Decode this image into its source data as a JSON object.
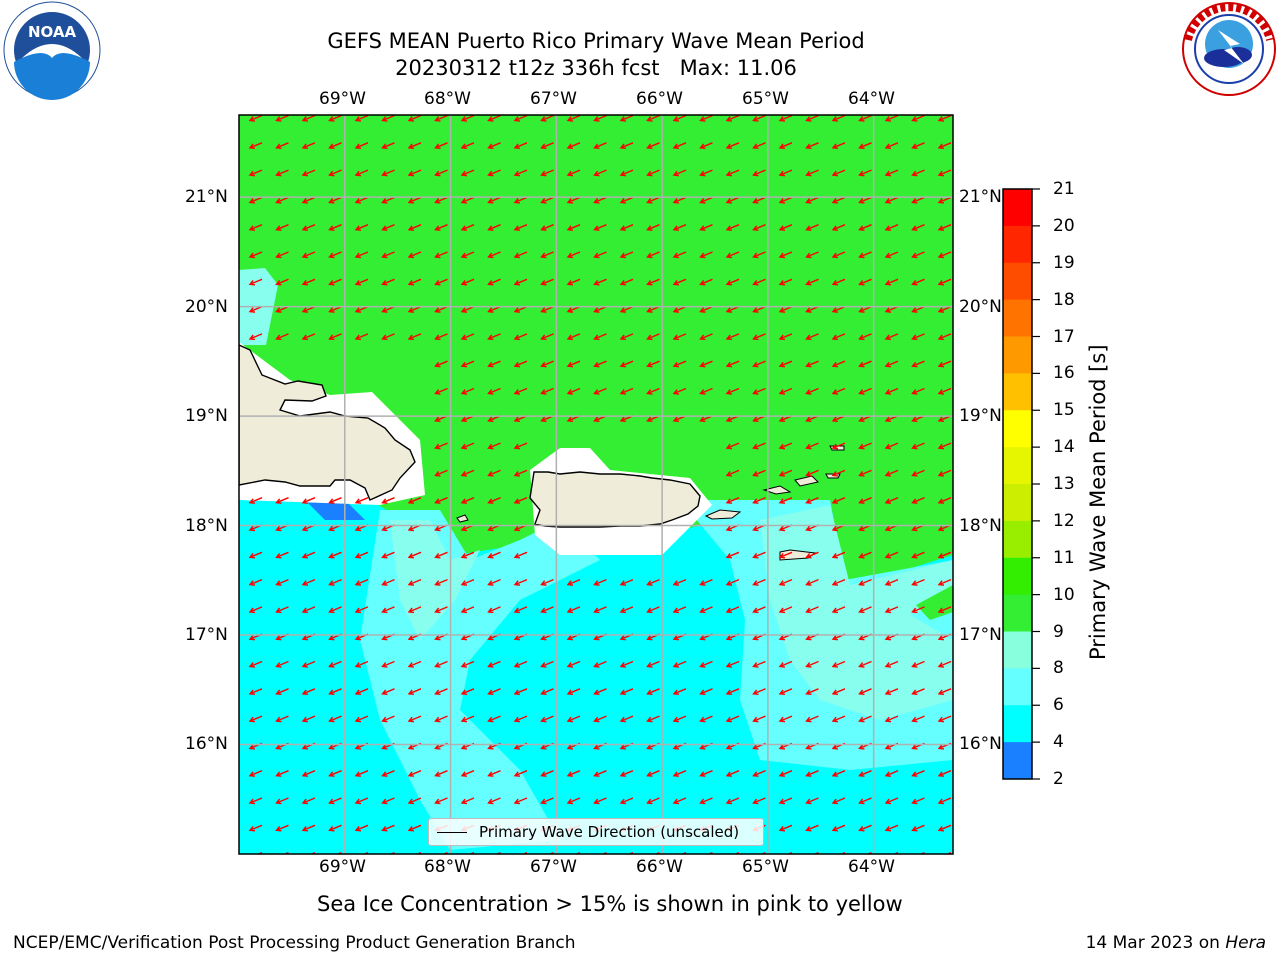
{
  "title": {
    "line1": "GEFS MEAN Puerto Rico Primary Wave Mean Period",
    "line2": "20230312 t12z 336h fcst   Max: 11.06"
  },
  "logos": {
    "left": {
      "name": "noaa-logo",
      "text": "NOAA",
      "ring_text": "NATIONAL OCEANIC AND ATMOSPHERIC ADMINISTRATION · U.S. DEPARTMENT OF COMMERCE"
    },
    "right": {
      "name": "nws-logo",
      "ring_text": "NATIONAL WEATHER SERVICE"
    }
  },
  "map": {
    "lon_ticks": [
      "69°W",
      "68°W",
      "67°W",
      "66°W",
      "65°W",
      "64°W"
    ],
    "lat_ticks": [
      "21°N",
      "20°N",
      "19°N",
      "18°N",
      "17°N",
      "16°N"
    ],
    "extent": {
      "lon_min": -70.0,
      "lon_max": -63.25,
      "lat_min": 15.0,
      "lat_max": 21.75
    },
    "colors": {
      "green": "#33ee33",
      "aqua_light": "#88ffee",
      "aqua": "#66ffff",
      "cyan": "#00ffff",
      "land": "#efedd9",
      "blue": "#1a80ff",
      "arrow": "#ff0000",
      "grid": "#b0b0b0"
    },
    "arrow_direction_deg": 200,
    "legend": {
      "label": "Primary Wave Direction (unscaled)"
    }
  },
  "colorbar": {
    "label": "Primary Wave Mean Period [s]",
    "ticks": [
      "21",
      "20",
      "19",
      "18",
      "17",
      "16",
      "15",
      "14",
      "13",
      "12",
      "11",
      "10",
      "9",
      "8",
      "6",
      "4",
      "2"
    ],
    "colors": [
      "#ff0000",
      "#ff2600",
      "#ff4d00",
      "#ff7300",
      "#ff9900",
      "#ffc000",
      "#ffff00",
      "#e6f500",
      "#ccee00",
      "#99ee00",
      "#33ee00",
      "#33ee33",
      "#88ffdd",
      "#66ffff",
      "#00ffff",
      "#1a80ff",
      "#0000ff"
    ]
  },
  "annotation": "Sea Ice Concentration > 15% is shown in pink to yellow",
  "footer": {
    "left": "NCEP/EMC/Verification Post Processing Product Generation Branch",
    "right_prefix": "14 Mar 2023 on ",
    "right_host": "Hera"
  }
}
